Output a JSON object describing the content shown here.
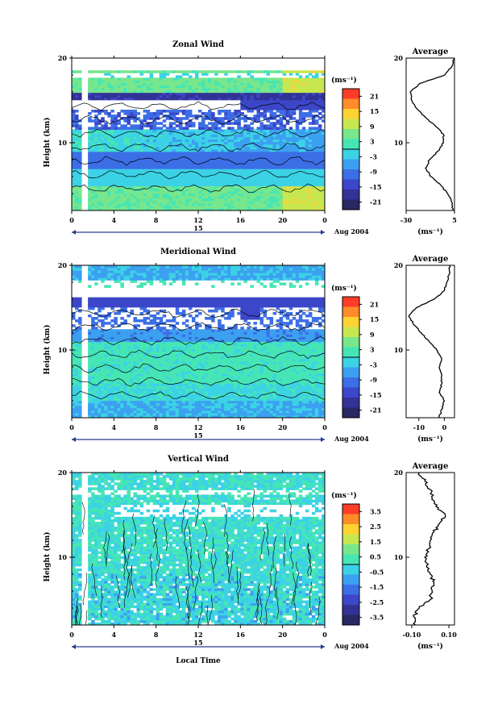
{
  "figure_title": "",
  "footer": {
    "xlabel": "Local Time"
  },
  "chart_data": [
    {
      "type": "heatmap",
      "title": "Zonal Wind",
      "xlabel": "",
      "ylabel": "Height (km)",
      "x_ticks": [
        "0",
        "4",
        "8",
        "12",
        "16",
        "20",
        "0"
      ],
      "date_label": "15",
      "date_suffix": "Aug 2004",
      "y_ticks": [
        "20",
        "10"
      ],
      "xlim": [
        0,
        24
      ],
      "ylim": [
        2,
        20
      ],
      "colorbar": {
        "unit": "(ms⁻¹)",
        "ticks": [
          "21",
          "15",
          "9",
          "3",
          "-3",
          "-9",
          "-15",
          "-21"
        ],
        "range": [
          -24,
          24
        ]
      },
      "profile": {
        "title": "Average",
        "xlabel": "(ms⁻¹)",
        "x_ticks": [
          "-30",
          "5"
        ],
        "xlim": [
          -30,
          5
        ],
        "y_ticks": [
          "20",
          "10"
        ],
        "height": [
          2.0,
          3.0,
          4.0,
          5.0,
          6.0,
          7.0,
          8.0,
          9.0,
          10.0,
          11.0,
          12.0,
          13.0,
          14.0,
          15.0,
          16.0,
          17.0,
          18.0,
          19.0,
          20.0
        ],
        "values": [
          4,
          3,
          0,
          -5,
          -12,
          -16,
          -13,
          -7,
          -3,
          -3,
          -9,
          -16,
          -22,
          -26,
          -27,
          -20,
          -2,
          3,
          5
        ]
      }
    },
    {
      "type": "heatmap",
      "title": "Meridional Wind",
      "xlabel": "",
      "ylabel": "Height (km)",
      "x_ticks": [
        "0",
        "4",
        "8",
        "12",
        "16",
        "20",
        "0"
      ],
      "date_label": "15",
      "date_suffix": "Aug 2004",
      "y_ticks": [
        "20",
        "10"
      ],
      "xlim": [
        0,
        24
      ],
      "ylim": [
        2,
        20
      ],
      "colorbar": {
        "unit": "(ms⁻¹)",
        "ticks": [
          "21",
          "15",
          "9",
          "3",
          "-3",
          "-9",
          "-15",
          "-21"
        ],
        "range": [
          -24,
          24
        ]
      },
      "profile": {
        "title": "Average",
        "xlabel": "(ms⁻¹)",
        "x_ticks": [
          "-10",
          "0"
        ],
        "xlim": [
          -15,
          4
        ],
        "y_ticks": [
          "20",
          "10"
        ],
        "height": [
          2.0,
          3.0,
          4.0,
          5.0,
          6.0,
          7.0,
          8.0,
          9.0,
          10.0,
          11.0,
          12.0,
          13.0,
          14.0,
          15.0,
          16.0,
          17.0,
          18.0,
          19.0,
          20.0
        ],
        "values": [
          -2,
          -1,
          0,
          -2,
          -1,
          -1,
          -2,
          -1,
          -3,
          -6,
          -9,
          -12,
          -14,
          -11,
          -4,
          0,
          1,
          2,
          2
        ]
      }
    },
    {
      "type": "heatmap",
      "title": "Vertical Wind",
      "xlabel": "Local Time",
      "ylabel": "Height (km)",
      "x_ticks": [
        "0",
        "4",
        "8",
        "12",
        "16",
        "20",
        "0"
      ],
      "date_label": "15",
      "date_suffix": "Aug 2004",
      "y_ticks": [
        "20",
        "10"
      ],
      "xlim": [
        0,
        24
      ],
      "ylim": [
        2,
        20
      ],
      "colorbar": {
        "unit": "(ms⁻¹)",
        "ticks": [
          "3.5",
          "2.5",
          "1.5",
          "0.5",
          "-0.5",
          "-1.5",
          "-2.5",
          "-3.5"
        ],
        "range": [
          -4,
          4
        ]
      },
      "profile": {
        "title": "Average",
        "xlabel": "(ms⁻¹)",
        "x_ticks": [
          "-0.10",
          "0.10"
        ],
        "xlim": [
          -0.13,
          0.13
        ],
        "y_ticks": [
          "20",
          "10"
        ],
        "height": [
          2.0,
          3.0,
          4.0,
          5.0,
          6.0,
          7.0,
          8.0,
          9.0,
          10.0,
          11.0,
          12.0,
          13.0,
          14.0,
          15.0,
          16.0,
          17.0,
          18.0,
          19.0,
          20.0
        ],
        "values": [
          -0.08,
          -0.09,
          -0.06,
          0.0,
          0.01,
          0.02,
          0.0,
          -0.02,
          -0.03,
          -0.01,
          0.0,
          0.02,
          0.05,
          0.08,
          0.03,
          0.01,
          0.0,
          -0.03,
          -0.06
        ]
      }
    }
  ]
}
